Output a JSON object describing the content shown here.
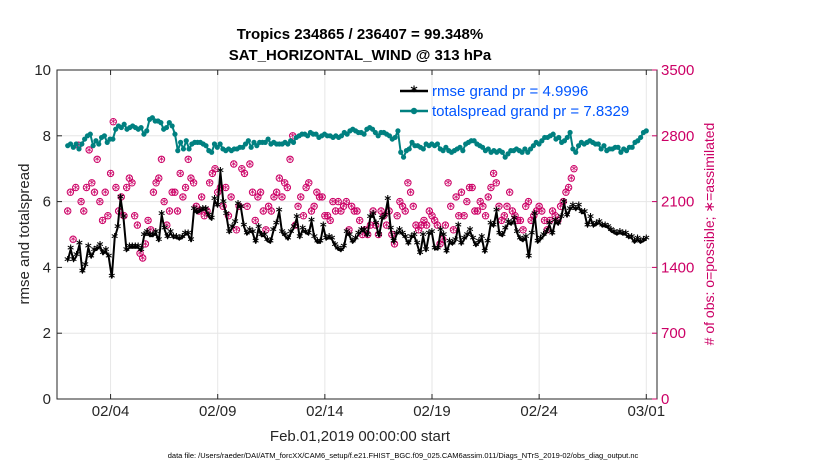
{
  "chart_data": {
    "type": "line",
    "title": "Tropics 234865 / 236407 = 99.348%",
    "subtitle": "SAT_HORIZONTAL_WIND @ 313 hPa",
    "xlabel": "Feb.01,2019 00:00:00 start",
    "ylabel": "rmse and totalspread",
    "ylabel_right": "# of obs: o=possible; ∗=assimilated",
    "x_ticks": [
      "02/04",
      "02/09",
      "02/14",
      "02/19",
      "02/24",
      "03/01"
    ],
    "x_tick_days": [
      3,
      8,
      13,
      18,
      23,
      28
    ],
    "xlim": [
      0.5,
      28.5
    ],
    "ylim": [
      0,
      10
    ],
    "y_ticks": [
      0,
      2,
      4,
      6,
      8,
      10
    ],
    "ylim_right": [
      0,
      3500
    ],
    "y_ticks_right": [
      0,
      700,
      1400,
      2100,
      2800,
      3500
    ],
    "footer": "data file: /Users/raeder/DAI/ATM_forcXX/CAM6_setup/f.e21.FHIST_BGC.f09_025.CAM6assim.011/Diags_NTrS_2019-02/obs_diag_output.nc",
    "series": [
      {
        "name": "rmse grand pr = 4.9996",
        "color": "#000000",
        "values": [
          4.2,
          4.55,
          4.2,
          4.35,
          4.7,
          3.85,
          4.05,
          4.6,
          4.3,
          4.5,
          4.55,
          4.65,
          4.4,
          4.5,
          4.3,
          3.7,
          4.9,
          5.2,
          6.1,
          5.5,
          4.5,
          4.6,
          4.6,
          4.6,
          4.6,
          4.5,
          4.95,
          5.05,
          4.95,
          4.95,
          5.05,
          4.8,
          5.6,
          5.15,
          4.9,
          5.05,
          4.9,
          4.9,
          4.85,
          4.9,
          5.0,
          5.0,
          4.8,
          5.75,
          5.65,
          5.7,
          5.75,
          5.75,
          5.55,
          5.45,
          6.05,
          5.85,
          6.9,
          5.95,
          5.6,
          5.05,
          5.2,
          5.35,
          5.9,
          5.8,
          5.25,
          5.0,
          5.1,
          5.05,
          4.75,
          5.2,
          4.95,
          4.95,
          4.8,
          4.75,
          5.1,
          5.3,
          5.7,
          5.05,
          4.95,
          4.85,
          5.05,
          5.2,
          5.5,
          4.9,
          5.15,
          5.05,
          5.0,
          5.4,
          4.9,
          4.75,
          4.75,
          5.25,
          4.85,
          4.9,
          4.85,
          4.65,
          4.55,
          4.5,
          4.6,
          5.05,
          4.95,
          4.75,
          4.85,
          5.0,
          5.1,
          5.1,
          4.95,
          5.5,
          5.6,
          5.3,
          4.95,
          5.45,
          5.55,
          6.05,
          5.15,
          4.75,
          5.0,
          5.1,
          5.0,
          4.9,
          4.7,
          4.9,
          4.95,
          4.7,
          4.4,
          4.95,
          4.5,
          5.0,
          5.05,
          4.55,
          4.55,
          5.1,
          4.95,
          4.45,
          4.75,
          4.7,
          4.8,
          5.25,
          4.7,
          4.85,
          4.95,
          5.1,
          4.85,
          4.65,
          4.75,
          4.9,
          4.45,
          4.75,
          5.3,
          5.25,
          5.7,
          5.0,
          4.95,
          5.15,
          5.35,
          5.3,
          5.45,
          5.05,
          4.85,
          4.8,
          4.9,
          4.3,
          5.0,
          5.6,
          4.75,
          4.85,
          4.95,
          5.05,
          5.3,
          5.0,
          5.4,
          5.3,
          5.5,
          5.95,
          5.55,
          5.75,
          5.85,
          5.75,
          5.85,
          5.65,
          5.65,
          5.25,
          5.5,
          5.25,
          5.3,
          5.35,
          5.25,
          5.25,
          5.2,
          5.1,
          5.05,
          5.0,
          5.05,
          5.0,
          5.0,
          4.9,
          4.9,
          4.75,
          4.85,
          4.75,
          4.8,
          4.85
        ]
      },
      {
        "name": "totalspread grand pr = 7.8329",
        "color": "#008080",
        "values": [
          7.7,
          7.75,
          7.65,
          7.75,
          7.6,
          7.75,
          7.9,
          8.0,
          8.05,
          7.7,
          7.85,
          7.75,
          7.95,
          8.0,
          7.8,
          7.9,
          7.9,
          8.2,
          8.3,
          8.25,
          8.35,
          8.2,
          8.25,
          8.3,
          8.25,
          8.2,
          8.25,
          8.05,
          8.15,
          8.5,
          8.55,
          8.45,
          8.45,
          8.4,
          8.2,
          8.25,
          8.4,
          8.3,
          8.05,
          7.55,
          7.8,
          7.6,
          7.85,
          7.6,
          7.75,
          7.8,
          7.8,
          7.8,
          7.75,
          7.7,
          7.55,
          7.5,
          7.75,
          7.65,
          7.75,
          7.6,
          7.55,
          7.6,
          7.55,
          7.6,
          7.6,
          7.65,
          7.65,
          7.75,
          7.85,
          7.65,
          7.8,
          7.7,
          7.8,
          7.8,
          7.8,
          7.9,
          7.75,
          7.8,
          7.75,
          7.75,
          7.75,
          7.8,
          7.75,
          7.85,
          7.8,
          7.95,
          8.0,
          8.05,
          8.05,
          8.0,
          8.1,
          8.05,
          8.05,
          7.95,
          8.0,
          8.05,
          8.0,
          8.0,
          7.95,
          8.0,
          7.95,
          8.0,
          8.1,
          8.05,
          8.15,
          8.2,
          8.15,
          8.1,
          8.1,
          8.05,
          8.2,
          8.25,
          8.2,
          8.1,
          8.0,
          8.1,
          8.1,
          8.05,
          8.0,
          7.9,
          7.95,
          8.15,
          7.5,
          7.35,
          7.55,
          7.6,
          7.8,
          7.7,
          7.7,
          7.65,
          7.6,
          7.75,
          7.7,
          7.75,
          7.7,
          7.75,
          7.6,
          7.55,
          7.65,
          7.55,
          7.5,
          7.55,
          7.6,
          7.65,
          7.55,
          7.75,
          7.8,
          7.85,
          7.85,
          7.75,
          7.7,
          7.65,
          7.55,
          7.6,
          7.5,
          7.55,
          7.5,
          7.55,
          7.5,
          7.35,
          7.45,
          7.55,
          7.55,
          7.6,
          7.55,
          7.5,
          7.6,
          7.5,
          7.6,
          7.7,
          7.8,
          7.75,
          7.85,
          7.95,
          7.95,
          8.0,
          8.05,
          7.9,
          7.95,
          7.8,
          7.85,
          7.95,
          8.1,
          7.6,
          7.5,
          7.7,
          7.8,
          7.75,
          7.8,
          7.85,
          7.8,
          7.75,
          7.75,
          7.6,
          7.7,
          7.55,
          7.6,
          7.6,
          7.65,
          7.65,
          7.5,
          7.6,
          7.55,
          7.65,
          7.65,
          7.8,
          7.85,
          7.95,
          8.1,
          8.15
        ]
      },
      {
        "name": "# of obs possible (o)",
        "color": "#cc0066",
        "axis": "right",
        "values": [
          2000,
          2200,
          1700,
          2250,
          2700,
          2100,
          2000,
          2250,
          2650,
          2300,
          2200,
          2550,
          2100,
          1900,
          2200,
          1950,
          2400,
          2950,
          2250,
          2000,
          2150,
          1950,
          2250,
          2350,
          2300,
          1950,
          1850,
          1550,
          1500,
          1650,
          1900,
          1800,
          2200,
          2300,
          2350,
          2550,
          2100,
          1850,
          2000,
          2200,
          2200,
          2000,
          2400,
          2150,
          2250,
          2550,
          2350,
          2300,
          2050,
          2000,
          2150,
          1950,
          2000,
          2300,
          2400,
          2450,
          2200,
          2250,
          2050,
          2250,
          1950,
          2150,
          2500,
          1800,
          2050,
          2450,
          2400,
          2050,
          2500,
          2200,
          1900,
          2150,
          2200,
          2000,
          1800,
          2050,
          2000,
          2150,
          2200,
          2350,
          2150,
          2300,
          2250,
          2550,
          2800,
          1850,
          2050,
          2150,
          1950,
          2250,
          2300,
          2000,
          2050,
          2200,
          2150,
          2150,
          1950,
          1950,
          1900,
          2100,
          2000,
          2100,
          2000,
          2050,
          2100,
          1800,
          2050,
          2000,
          2000,
          1900,
          1750,
          1800,
          1750,
          1850,
          2000,
          1850,
          1750,
          2000,
          1950,
          1850,
          2000,
          1750,
          1650,
          1950,
          2100,
          2050,
          2000,
          2300,
          2200,
          2050,
          1850,
          1800,
          1850,
          1900,
          1850,
          2000,
          1950,
          1900,
          1850,
          1650,
          1700,
          1850,
          2300,
          2050,
          1800,
          2150,
          1950,
          2200,
          1950,
          2100,
          2250,
          2250,
          2000,
          2000,
          2100,
          2050,
          1950,
          2150,
          2250,
          2400,
          2300,
          2050,
          1900,
          1950,
          2050,
          2200,
          2000,
          1950,
          1900,
          1900,
          1800,
          2050,
          2100,
          1900,
          1950,
          2000,
          2050,
          2000,
          1900,
          1800,
          1900,
          2000,
          1950,
          1900,
          2050,
          2100,
          2200,
          2250,
          2350,
          2450
        ]
      },
      {
        "name": "# of obs assimilated (*)",
        "color": "#cc0066",
        "axis": "right",
        "values": [
          1990,
          2190,
          1690,
          2240,
          2690,
          2090,
          1990,
          2240,
          2640,
          2290,
          2190,
          2540,
          2090,
          1890,
          2190,
          1940,
          2390,
          2940,
          2240,
          1990,
          2140,
          1940,
          2240,
          2340,
          2290,
          1940,
          1840,
          1540,
          1490,
          1640,
          1890,
          1790,
          2190,
          2290,
          2340,
          2540,
          2090,
          1840,
          1990,
          2190,
          2190,
          1990,
          2390,
          2140,
          2240,
          2540,
          2340,
          2290,
          2040,
          1990,
          2140,
          1940,
          1990,
          2290,
          2390,
          2440,
          2190,
          2240,
          2040,
          2240,
          1940,
          2140,
          2490,
          1790,
          2040,
          2440,
          2390,
          2040,
          2490,
          2190,
          1890,
          2140,
          2190,
          1990,
          1790,
          2040,
          1990,
          2140,
          2190,
          2340,
          2140,
          2290,
          2240,
          2540,
          2790,
          1840,
          2040,
          2140,
          1940,
          2240,
          2290,
          1990,
          2040,
          2190,
          2140,
          2140,
          1940,
          1940,
          1890,
          2090,
          1990,
          2090,
          1990,
          2040,
          2090,
          1790,
          2040,
          1990,
          1990,
          1890,
          1740,
          1790,
          1740,
          1840,
          1990,
          1840,
          1740,
          1990,
          1940,
          1840,
          1990,
          1740,
          1640,
          1940,
          2090,
          2040,
          1990,
          2290,
          2190,
          2040,
          1840,
          1790,
          1840,
          1890,
          1840,
          1990,
          1940,
          1890,
          1840,
          1640,
          1690,
          1840,
          2290,
          2040,
          1790,
          2140,
          1940,
          2190,
          1940,
          2090,
          2240,
          2240,
          1990,
          1990,
          2090,
          2040,
          1940,
          2140,
          2240,
          2390,
          2290,
          2040,
          1890,
          1940,
          2040,
          2190,
          1990,
          1940,
          1890,
          1890,
          1790,
          2040,
          2090,
          1890,
          1940,
          1990,
          2040,
          1990,
          1890,
          1790,
          1890,
          1990,
          1940,
          1890,
          2040,
          2090,
          2190,
          2240,
          2340,
          2440
        ]
      }
    ]
  }
}
